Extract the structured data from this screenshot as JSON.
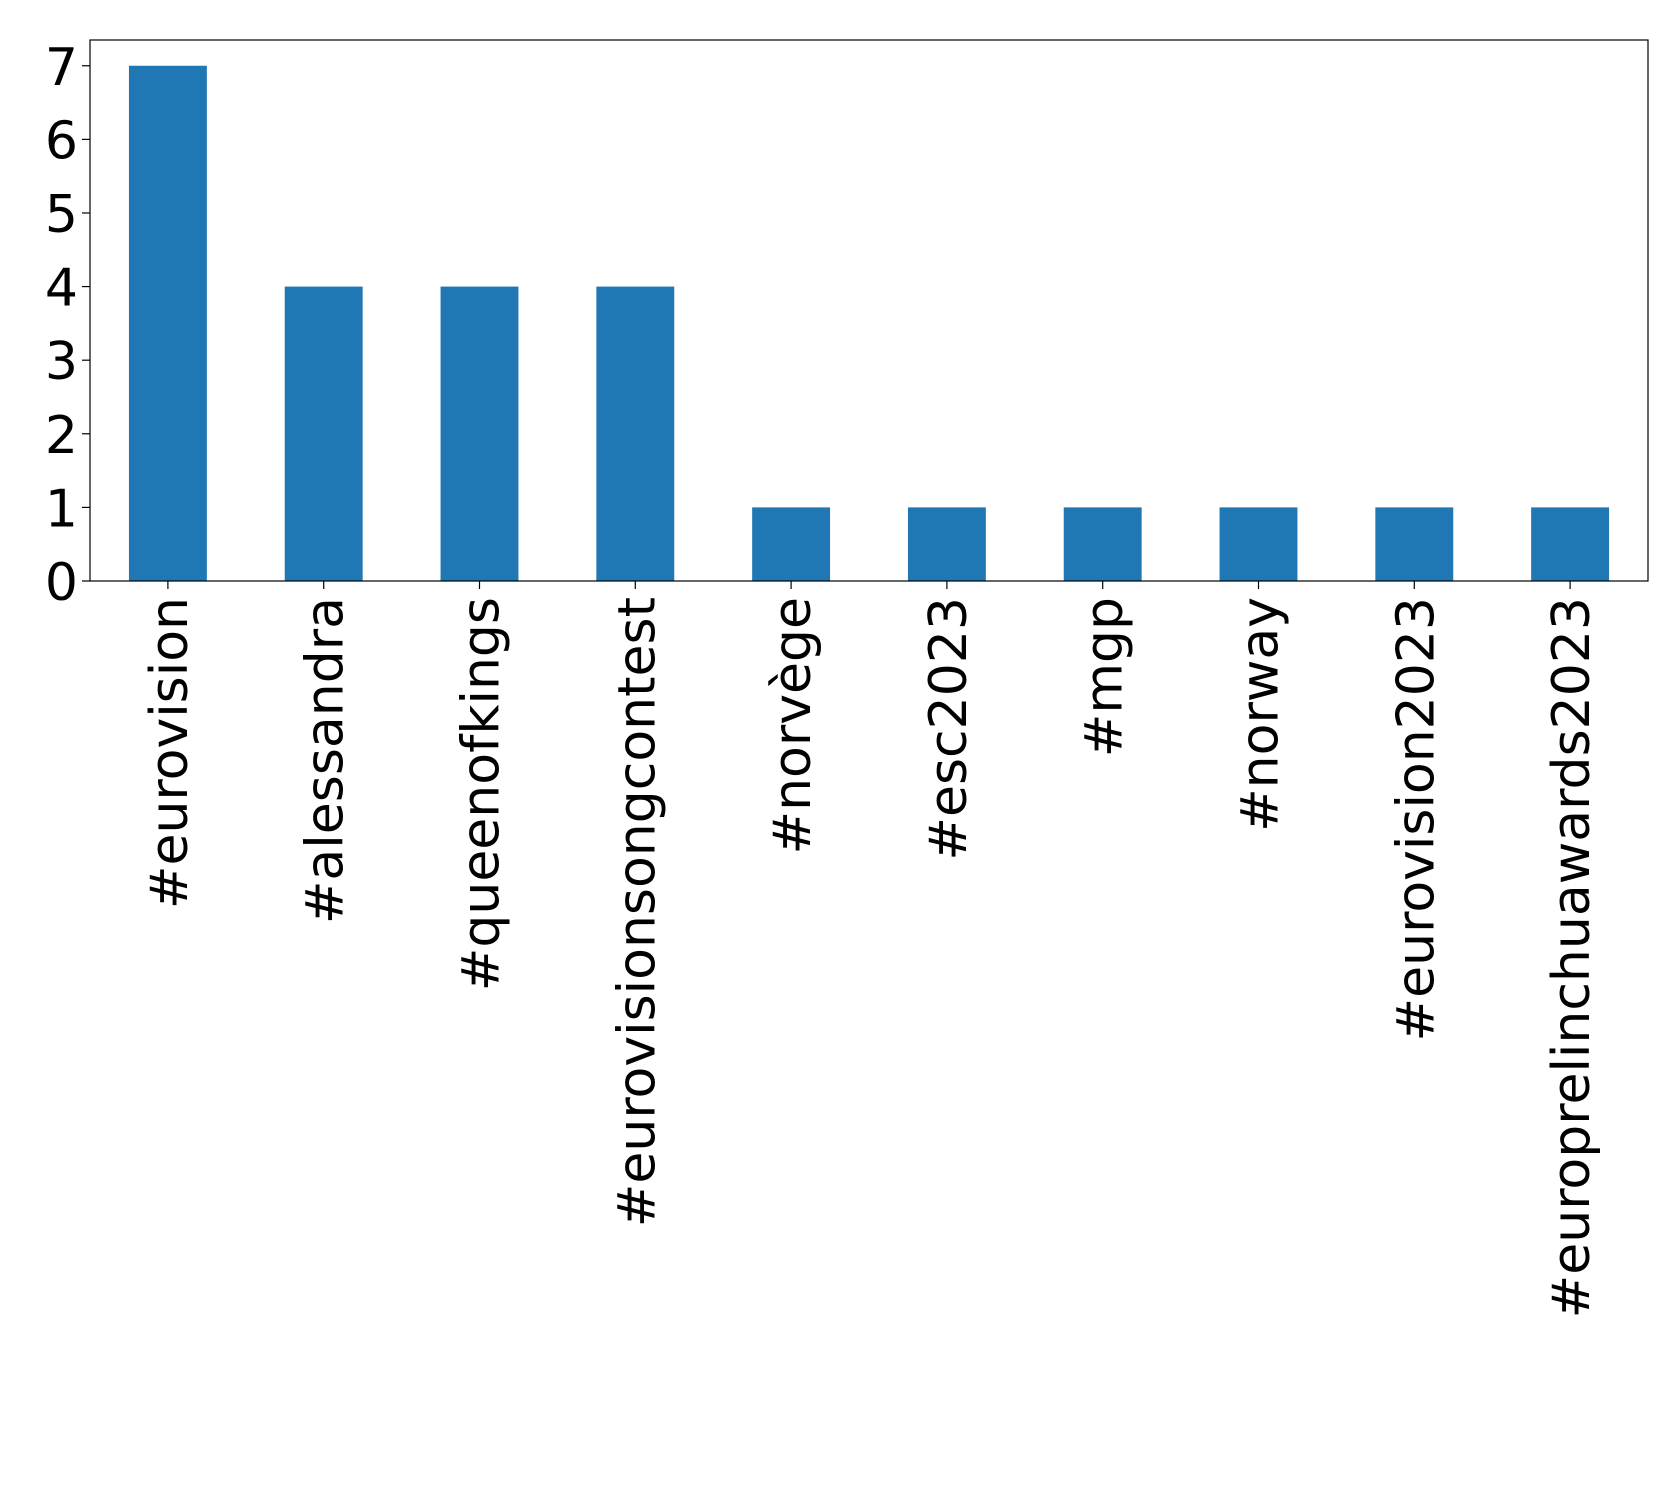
{
  "chart_data": {
    "type": "bar",
    "categories": [
      "#eurovision",
      "#alessandra",
      "#queenofkings",
      "#eurovisionsongcontest",
      "#norvège",
      "#esc2023",
      "#mgp",
      "#norway",
      "#eurovision2023",
      "#europrelinchuawards2023"
    ],
    "values": [
      7,
      4,
      4,
      4,
      1,
      1,
      1,
      1,
      1,
      1
    ],
    "color": "#1f77b4",
    "ylim": [
      0,
      7.35
    ],
    "yticks": [
      0,
      1,
      2,
      3,
      4,
      5,
      6,
      7
    ],
    "grid": false
  }
}
